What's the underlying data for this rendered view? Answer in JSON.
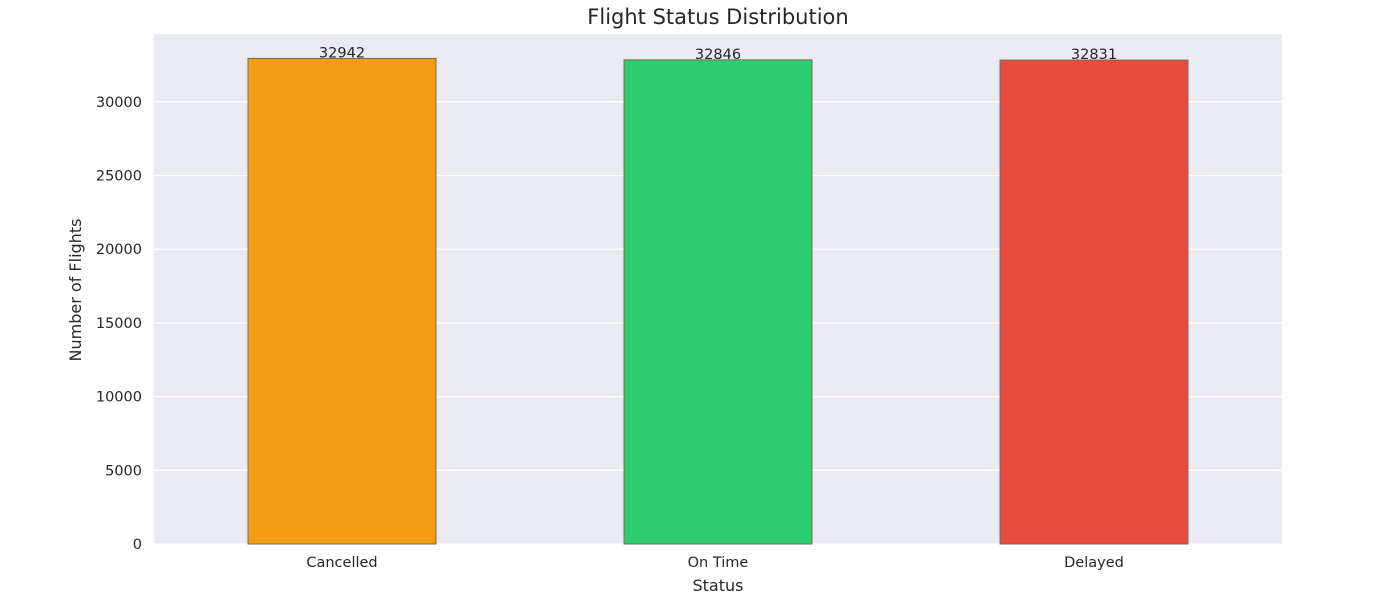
{
  "chart_data": {
    "type": "bar",
    "title": "Flight Status Distribution",
    "xlabel": "Status",
    "ylabel": "Number of Flights",
    "categories": [
      "Cancelled",
      "On Time",
      "Delayed"
    ],
    "values": [
      32942,
      32846,
      32831
    ],
    "data_labels": [
      "32942",
      "32846",
      "32831"
    ],
    "bar_colors": [
      "#f39c12",
      "#2ecc71",
      "#e74c3c"
    ],
    "bar_edge_color": "#7a6a55",
    "background_color": "#eaeaf2",
    "grid_color": "#ffffff",
    "grid": true,
    "ylim": [
      0,
      34600
    ],
    "yticks": [
      0,
      5000,
      10000,
      15000,
      20000,
      25000,
      30000
    ],
    "ytick_labels": [
      "0",
      "5000",
      "10000",
      "15000",
      "20000",
      "25000",
      "30000"
    ]
  }
}
